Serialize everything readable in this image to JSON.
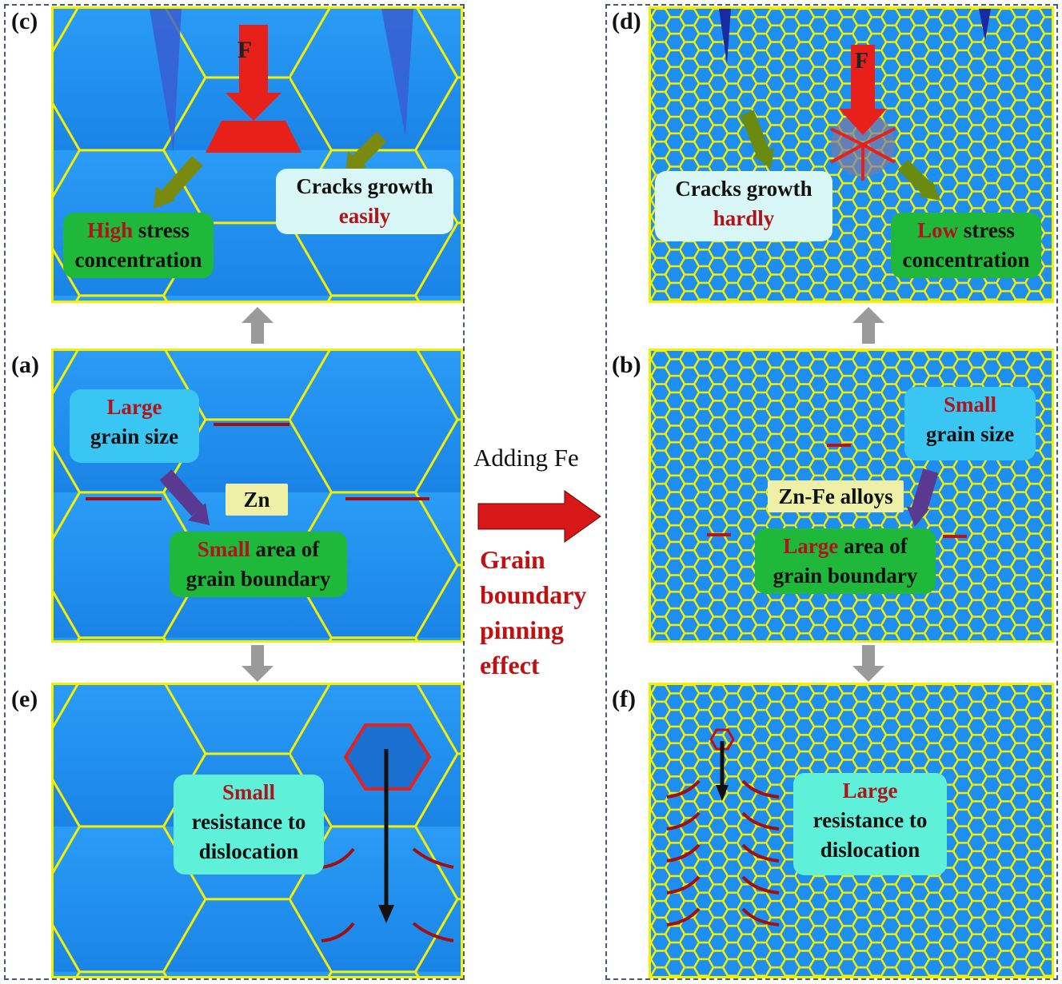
{
  "colors": {
    "grain_bg": "#1e8ef0",
    "boundary": "#f4f000",
    "force": "#e8201a",
    "green_box": "#1fb83a",
    "light_box": "#d9f7f7",
    "cyan_box": "#39c6f2",
    "teal_box": "#5ef0d8",
    "zn_box": "#eef0a8"
  },
  "panels": {
    "c": {
      "label": "(c)",
      "force": "F",
      "crack_text": "Cracks growth",
      "crack_word": "easily",
      "stress_word": "High",
      "stress_text1": " stress",
      "stress_text2": "concentration"
    },
    "d": {
      "label": "(d)",
      "force": "F",
      "crack_text": "Cracks growth",
      "crack_word": "hardly",
      "stress_word": "Low",
      "stress_text1": " stress",
      "stress_text2": "concentration"
    },
    "a": {
      "label": "(a)",
      "grain_word": "Large",
      "grain_text": "grain size",
      "material": "Zn",
      "area_word": "Small",
      "area_text1": " area of",
      "area_text2": "grain boundary"
    },
    "b": {
      "label": "(b)",
      "grain_word": "Small",
      "grain_text": "grain size",
      "material": "Zn-Fe alloys",
      "area_word": "Large",
      "area_text1": " area of",
      "area_text2": "grain boundary"
    },
    "e": {
      "label": "(e)",
      "res_word": "Small",
      "res_text1": "resistance to",
      "res_text2": "dislocation"
    },
    "f": {
      "label": "(f)",
      "res_word": "Large",
      "res_text1": "resistance to",
      "res_text2": "dislocation"
    }
  },
  "center": {
    "adding": "Adding Fe",
    "effect_lines": [
      "Grain",
      "boundary",
      "pinning",
      "effect"
    ]
  }
}
